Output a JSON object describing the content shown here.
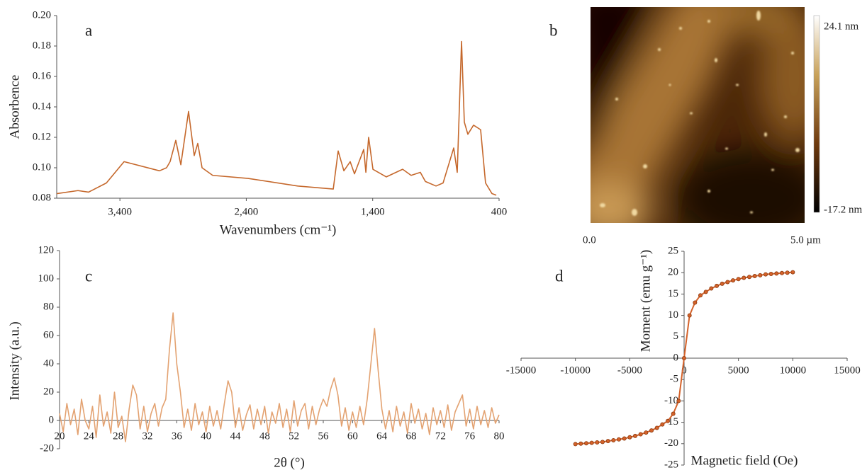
{
  "chart_data": [
    {
      "type": "line",
      "label": "a",
      "xlabel": "Wavenumbers (cm⁻¹)",
      "ylabel": "Absorbence",
      "color": "#c5682c",
      "x": [
        3900,
        3732,
        3648,
        3507,
        3367,
        3087,
        3031,
        3003,
        2958,
        2918,
        2857,
        2812,
        2784,
        2750,
        2666,
        2386,
        1993,
        1712,
        1673,
        1628,
        1578,
        1544,
        1471,
        1454,
        1432,
        1398,
        1292,
        1163,
        1096,
        1023,
        983,
        899,
        843,
        759,
        731,
        697,
        675,
        647,
        602,
        546,
        507,
        456,
        422
      ],
      "values": [
        0.083,
        0.085,
        0.084,
        0.09,
        0.104,
        0.098,
        0.1,
        0.104,
        0.118,
        0.102,
        0.137,
        0.108,
        0.116,
        0.1,
        0.095,
        0.093,
        0.088,
        0.086,
        0.111,
        0.098,
        0.104,
        0.096,
        0.112,
        0.097,
        0.12,
        0.099,
        0.094,
        0.099,
        0.095,
        0.097,
        0.091,
        0.088,
        0.09,
        0.113,
        0.097,
        0.183,
        0.13,
        0.122,
        0.128,
        0.125,
        0.09,
        0.083,
        0.082
      ],
      "xlim": [
        3900,
        400
      ],
      "xticks": [
        {
          "value": 3400,
          "label": "3,400"
        },
        {
          "value": 2400,
          "label": "2,400"
        },
        {
          "value": 1400,
          "label": "1,400"
        },
        400
      ],
      "ylim": [
        0.08,
        0.2
      ],
      "yticks": [
        0.08,
        {
          "value": 0.1,
          "label": "0.10"
        },
        0.12,
        0.14,
        0.16,
        0.18,
        {
          "value": 0.2,
          "label": "0.20"
        }
      ]
    },
    {
      "type": "image",
      "label": "b",
      "colorbar_labels": [
        "24.1 nm",
        "-17.2 nm"
      ],
      "x_labels": [
        "0.0",
        "5.0 µm"
      ]
    },
    {
      "type": "line",
      "label": "c",
      "xlabel": "2θ (°)",
      "ylabel": "Intensity (a.u.)",
      "color": "#e3a271",
      "xaxis_at_zero": true,
      "x": [
        20,
        20.5,
        21,
        21.5,
        22,
        22.5,
        23,
        23.5,
        24,
        24.5,
        25,
        25.5,
        26,
        26.5,
        27,
        27.5,
        28,
        28.5,
        29,
        29.5,
        30,
        30.5,
        31,
        31.5,
        32,
        32.5,
        33,
        33.5,
        34,
        34.5,
        35,
        35.5,
        36,
        36.5,
        37,
        37.5,
        38,
        38.5,
        39,
        39.5,
        40,
        40.5,
        41,
        41.5,
        42,
        42.5,
        43,
        43.5,
        44,
        44.5,
        45,
        45.5,
        46,
        46.5,
        47,
        47.5,
        48,
        48.5,
        49,
        49.5,
        50,
        50.5,
        51,
        51.5,
        52,
        52.5,
        53,
        53.5,
        54,
        54.5,
        55,
        55.5,
        56,
        56.5,
        57,
        57.5,
        58,
        58.5,
        59,
        59.5,
        60,
        60.5,
        61,
        61.5,
        62,
        62.5,
        63,
        63.5,
        64,
        64.5,
        65,
        65.5,
        66,
        66.5,
        67,
        67.5,
        68,
        68.5,
        69,
        69.5,
        70,
        70.5,
        71,
        71.5,
        72,
        72.5,
        73,
        73.5,
        74,
        74.5,
        75,
        75.5,
        76,
        76.5,
        77,
        77.5,
        78,
        78.5,
        79,
        79.5,
        80
      ],
      "values": [
        5,
        -8,
        12,
        -3,
        8,
        -10,
        15,
        0,
        -6,
        10,
        -12,
        18,
        -4,
        6,
        -9,
        20,
        -5,
        3,
        -15,
        8,
        25,
        18,
        -6,
        10,
        -8,
        5,
        12,
        -4,
        9,
        15,
        50,
        76,
        40,
        20,
        -5,
        8,
        -7,
        12,
        -3,
        6,
        -8,
        10,
        -4,
        7,
        -6,
        12,
        28,
        20,
        -5,
        9,
        -7,
        4,
        11,
        -6,
        8,
        -3,
        10,
        -9,
        6,
        -2,
        12,
        -5,
        8,
        -8,
        14,
        -4,
        7,
        12,
        -6,
        10,
        -3,
        8,
        15,
        10,
        22,
        30,
        18,
        -4,
        9,
        -7,
        6,
        -5,
        10,
        -3,
        15,
        40,
        65,
        35,
        8,
        -6,
        7,
        -8,
        10,
        -4,
        6,
        -9,
        12,
        -2,
        8,
        -6,
        5,
        -10,
        9,
        -3,
        7,
        -5,
        11,
        -7,
        6,
        12,
        18,
        -4,
        8,
        -6,
        10,
        -3,
        7,
        -5,
        9,
        -2,
        4
      ],
      "xlim": [
        20,
        80
      ],
      "xticks": [
        20,
        24,
        28,
        32,
        36,
        40,
        44,
        48,
        52,
        56,
        60,
        64,
        68,
        72,
        76,
        80
      ],
      "ylim": [
        -20,
        120
      ],
      "yticks": [
        -20,
        0,
        20,
        40,
        60,
        80,
        100,
        120
      ]
    },
    {
      "type": "line",
      "label": "d",
      "xlabel": "Magnetic field (Oe)",
      "ylabel": "Moment (emu g⁻¹)",
      "color": "#d4622a",
      "markers": true,
      "axes_at_zero": true,
      "x": [
        -10000,
        -9500,
        -9000,
        -8500,
        -8000,
        -7500,
        -7000,
        -6500,
        -6000,
        -5500,
        -5000,
        -4500,
        -4000,
        -3500,
        -3000,
        -2500,
        -2000,
        -1500,
        -1000,
        -500,
        0,
        500,
        1000,
        1500,
        2000,
        2500,
        3000,
        3500,
        4000,
        4500,
        5000,
        5500,
        6000,
        6500,
        7000,
        7500,
        8000,
        8500,
        9000,
        9500,
        10000
      ],
      "values": [
        -20.1,
        -20.0,
        -19.9,
        -19.8,
        -19.7,
        -19.6,
        -19.4,
        -19.2,
        -19.0,
        -18.8,
        -18.5,
        -18.2,
        -17.8,
        -17.4,
        -16.9,
        -16.3,
        -15.5,
        -14.7,
        -13,
        -10,
        0,
        10,
        13,
        14.7,
        15.5,
        16.3,
        16.9,
        17.4,
        17.8,
        18.2,
        18.5,
        18.8,
        19.0,
        19.2,
        19.4,
        19.6,
        19.7,
        19.8,
        19.9,
        20.0,
        20.1
      ],
      "xlim": [
        -15000,
        15000
      ],
      "xticks": [
        -15000,
        -10000,
        -5000,
        0,
        5000,
        10000,
        15000
      ],
      "ylim": [
        -25,
        25
      ],
      "yticks": [
        -25,
        -20,
        -15,
        -10,
        -5,
        0,
        5,
        10,
        15,
        20,
        25
      ]
    }
  ]
}
